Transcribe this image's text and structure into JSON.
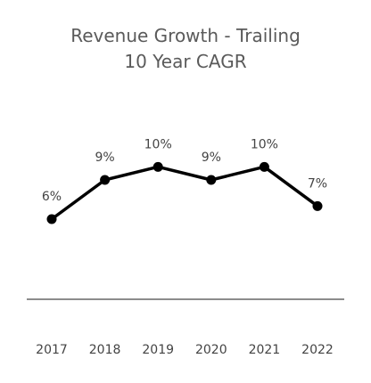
{
  "chart_data": {
    "type": "line",
    "title_line1": "Revenue Growth - Trailing",
    "title_line2": "10 Year CAGR",
    "categories": [
      "2017",
      "2018",
      "2019",
      "2020",
      "2021",
      "2022"
    ],
    "values": [
      6,
      9,
      10,
      9,
      10,
      7
    ],
    "data_labels": [
      "6%",
      "9%",
      "10%",
      "9%",
      "10%",
      "7%"
    ],
    "ylim": [
      0,
      12
    ],
    "grid": false,
    "legend": "none",
    "colors": {
      "line": "#000000",
      "axis": "#8c8c8c",
      "text": "#444444"
    }
  }
}
